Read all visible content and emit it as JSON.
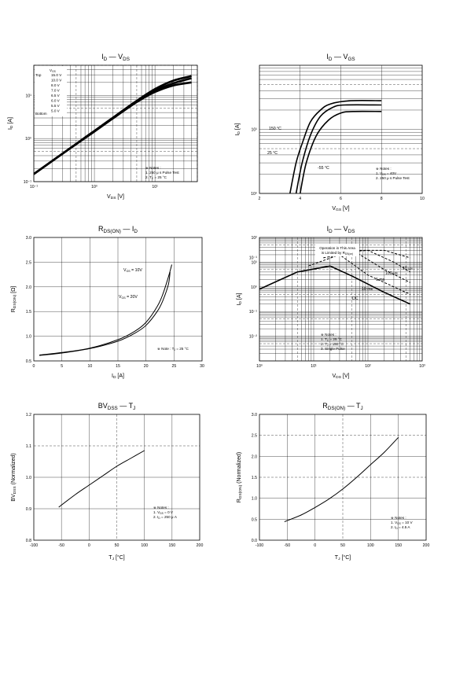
{
  "chart_data": [
    {
      "id": "c1",
      "type": "line",
      "title": "I_D — V_DS",
      "xlabel": "V_DS [V]",
      "ylabel": "I_D [A]",
      "xscale": "log",
      "yscale": "log",
      "xlim": [
        0.1,
        50
      ],
      "ylim": [
        0.1,
        50
      ],
      "xticks": [
        "10⁻¹",
        "10⁰",
        "10¹"
      ],
      "yticks": [
        "10¹",
        "10⁰",
        "10⁻¹"
      ],
      "legend_title": [
        "V_GS",
        "Top",
        "Bottom"
      ],
      "legend_entries": [
        "15.0 V",
        "10.0 V",
        "8.0 V",
        "7.0 V",
        "6.5 V",
        "6.0 V",
        "5.5 V",
        "5.0 V"
      ],
      "notes": [
        "※ Notes :",
        "1. 250 μ s Pulse Test",
        "2. T_C = 25 °C"
      ],
      "series": [
        {
          "x": [
            0.1,
            0.2,
            0.5,
            1,
            2,
            5,
            10,
            20,
            40
          ],
          "y": [
            0.15,
            0.3,
            0.75,
            1.5,
            3,
            7.5,
            14,
            22,
            28
          ]
        },
        {
          "x": [
            0.1,
            0.2,
            0.5,
            1,
            2,
            5,
            10,
            20,
            40
          ],
          "y": [
            0.15,
            0.3,
            0.75,
            1.5,
            3,
            7.4,
            13,
            19,
            25
          ]
        },
        {
          "x": [
            0.1,
            0.2,
            0.5,
            1,
            2,
            5,
            10,
            20,
            40
          ],
          "y": [
            0.15,
            0.3,
            0.74,
            1.45,
            2.9,
            7,
            12,
            17,
            20
          ]
        }
      ]
    },
    {
      "id": "c2",
      "type": "line",
      "title": "I_D — V_GS",
      "xlabel": "V_GS [V]",
      "ylabel": "I_D [A]",
      "xscale": "linear",
      "yscale": "log",
      "xlim": [
        2,
        10
      ],
      "ylim": [
        1,
        100
      ],
      "xticks": [
        "2",
        "4",
        "6",
        "8",
        "10"
      ],
      "yticks": [
        "10¹",
        "10⁰",
        "10⁻¹"
      ],
      "notes": [
        "※ Notes :",
        "1. V_DS = 40V",
        "2. 250 μ s Pulse Test"
      ],
      "series_labels": [
        "150 °C",
        "25 °C",
        "-55 °C"
      ],
      "series": [
        {
          "name": "150 °C",
          "x": [
            3.5,
            3.8,
            4.1,
            4.5,
            5,
            5.5,
            6.5,
            8
          ],
          "y": [
            1,
            3,
            6,
            13,
            20,
            25,
            28,
            28
          ]
        },
        {
          "name": "25 °C",
          "x": [
            3.8,
            4.1,
            4.5,
            5,
            5.6,
            6.2,
            8
          ],
          "y": [
            1,
            3,
            8,
            16,
            22,
            24,
            24
          ]
        },
        {
          "name": "-55 °C",
          "x": [
            4,
            4.3,
            4.8,
            5.4,
            6,
            6.6,
            8
          ],
          "y": [
            1,
            3,
            8,
            14,
            18,
            19,
            19
          ]
        }
      ]
    },
    {
      "id": "c3",
      "type": "line",
      "title": "R_DS(ON) — I_D",
      "xlabel": "I_D [A]",
      "ylabel": "R_DS(ON) [Ω]",
      "xlim": [
        0,
        30
      ],
      "ylim": [
        0.5,
        3.0
      ],
      "xticks": [
        "0",
        "5",
        "10",
        "15",
        "20",
        "25",
        "30"
      ],
      "yticks": [
        "0.5",
        "1.0",
        "1.5",
        "2.0",
        "2.5",
        "3.0"
      ],
      "notes": [
        "※ Note : T_J = 25 °C"
      ],
      "series_labels": [
        "V_GS = 10V",
        "V_GS = 20V"
      ],
      "series": [
        {
          "name": "V_GS = 10V",
          "x": [
            1,
            5,
            10,
            15,
            18,
            20,
            22,
            23,
            24,
            24.6
          ],
          "y": [
            0.62,
            0.67,
            0.76,
            0.93,
            1.1,
            1.28,
            1.6,
            1.85,
            2.2,
            2.45
          ]
        },
        {
          "name": "V_GS = 20V",
          "x": [
            1,
            5,
            10,
            15,
            18,
            20,
            22,
            23,
            24,
            24.3
          ],
          "y": [
            0.61,
            0.66,
            0.75,
            0.9,
            1.06,
            1.22,
            1.5,
            1.72,
            2.05,
            2.3
          ]
        }
      ]
    },
    {
      "id": "c4",
      "type": "line",
      "title": "I_D — V_DS",
      "xlabel": "V_DS [V]",
      "ylabel": "I_D [A]",
      "xscale": "log",
      "yscale": "log",
      "xlim": [
        1,
        1000
      ],
      "ylim": [
        0.001,
        100
      ],
      "xticks": [
        "10⁰",
        "10¹",
        "10²",
        "10³"
      ],
      "yticks": [
        "10²",
        "10¹",
        "10⁰",
        "10⁻¹",
        "10⁻²"
      ],
      "annotation": [
        "Operation in This Area",
        "is Limited by R_DS(on)"
      ],
      "series_labels": [
        "10 μs",
        "100 μs",
        "1 ms",
        "10 ms",
        "DC"
      ],
      "notes": [
        "※ Notes :",
        "1. T_C = 25 °C",
        "2. T_J = 150 °C",
        "3. Single Pulse"
      ],
      "series": [
        {
          "name": "DC",
          "x": [
            1,
            5,
            20,
            50,
            200,
            600
          ],
          "y": [
            0.8,
            4,
            7,
            2.8,
            0.6,
            0.2
          ]
        },
        {
          "name": "10 ms",
          "x": [
            8,
            30,
            100,
            300,
            600
          ],
          "y": [
            7,
            20,
            3,
            1,
            0.5
          ]
        },
        {
          "name": "1 ms",
          "x": [
            15,
            60,
            200,
            600
          ],
          "y": [
            15,
            25,
            5,
            1.5
          ]
        },
        {
          "name": "100 μs",
          "x": [
            30,
            100,
            300,
            600
          ],
          "y": [
            25,
            30,
            10,
            4
          ]
        },
        {
          "name": "10 μs",
          "x": [
            60,
            200,
            600
          ],
          "y": [
            30,
            30,
            15
          ]
        }
      ]
    },
    {
      "id": "c5",
      "type": "line",
      "title": "BV_DSS — T_J",
      "xlabel": "T_J [°C]",
      "ylabel": "BV_DSS (Normalized)",
      "xlim": [
        -100,
        200
      ],
      "ylim": [
        0.8,
        1.2
      ],
      "xticks": [
        "-100",
        "-50",
        "0",
        "50",
        "100",
        "150",
        "200"
      ],
      "yticks": [
        "0.8",
        "0.9",
        "1.0",
        "1.1",
        "1.2"
      ],
      "notes": [
        "※ Notes :",
        "1. V_GS = 0 V",
        "2. I_D = 250 μ A"
      ],
      "series": [
        {
          "x": [
            -55,
            -25,
            0,
            25,
            50,
            75,
            100
          ],
          "y": [
            0.905,
            0.945,
            0.975,
            1.005,
            1.035,
            1.06,
            1.085
          ]
        }
      ]
    },
    {
      "id": "c6",
      "type": "line",
      "title": "R_DS(ON) — T_J",
      "xlabel": "T_J [°C]",
      "ylabel": "R_DS(ON) (Normalized)",
      "xlim": [
        -100,
        200
      ],
      "ylim": [
        0,
        3.0
      ],
      "xticks": [
        "-100",
        "-50",
        "0",
        "50",
        "100",
        "150",
        "200"
      ],
      "yticks": [
        "0.0",
        "0.5",
        "1.0",
        "1.5",
        "2.0",
        "2.5",
        "3.0"
      ],
      "notes": [
        "※ Notes :",
        "1. V_GS = 10 V",
        "2. I_D = 4.5 A"
      ],
      "series": [
        {
          "x": [
            -55,
            -25,
            0,
            25,
            50,
            75,
            100,
            125,
            150
          ],
          "y": [
            0.44,
            0.6,
            0.78,
            0.98,
            1.22,
            1.5,
            1.8,
            2.1,
            2.45
          ]
        }
      ]
    }
  ]
}
